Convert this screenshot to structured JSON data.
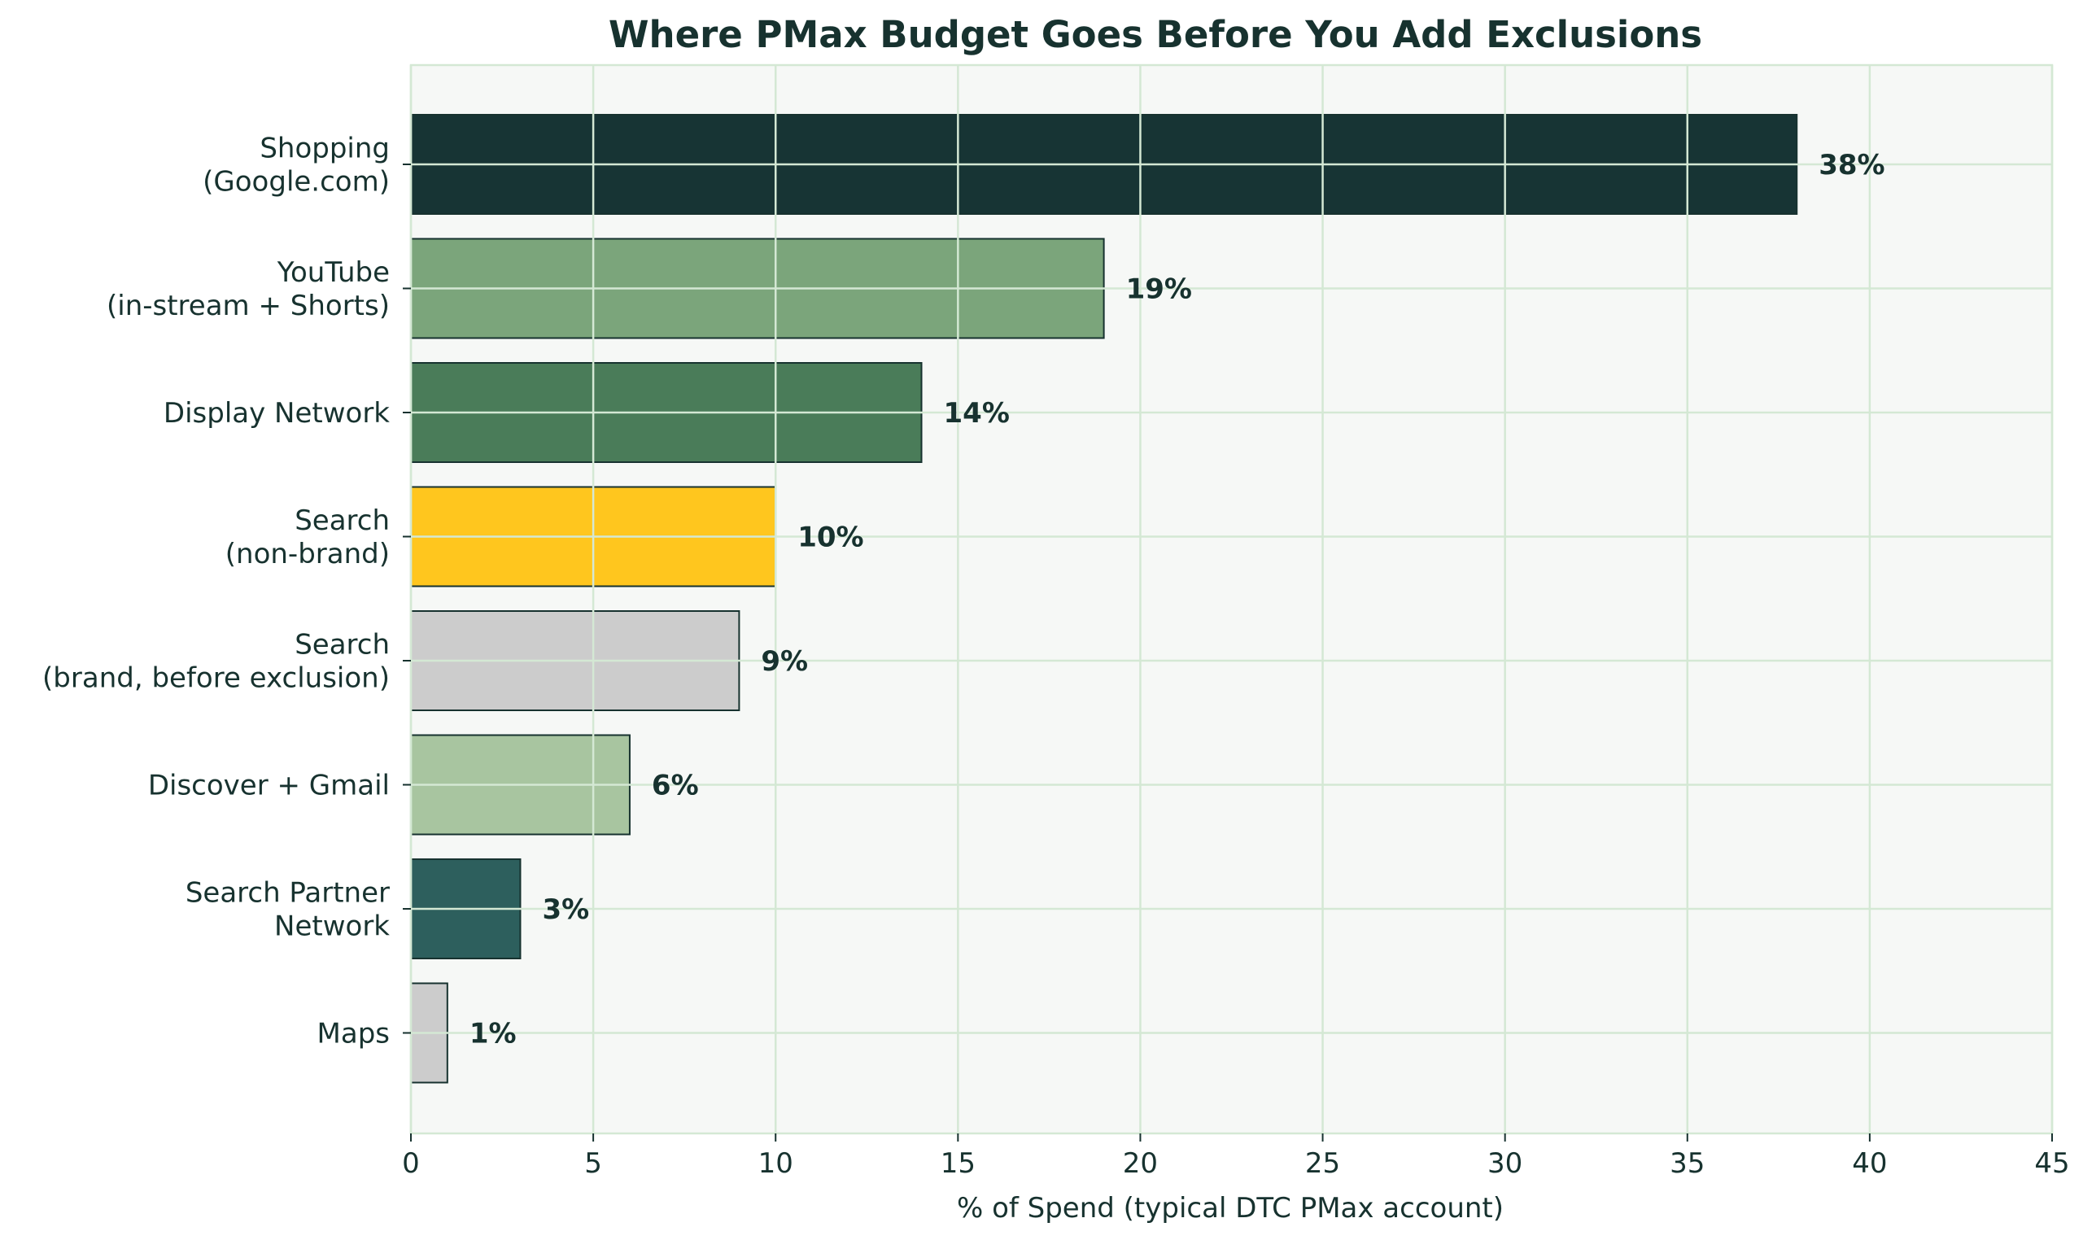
{
  "chart_data": {
    "type": "bar",
    "orientation": "horizontal",
    "title": "Where PMax Budget Goes Before You Add Exclusions",
    "xlabel": "% of Spend (typical DTC PMax account)",
    "ylabel": "",
    "xlim": [
      0,
      45
    ],
    "xticks": [
      0,
      5,
      10,
      15,
      20,
      25,
      30,
      35,
      40,
      45
    ],
    "grid": true,
    "categories": [
      [
        "Shopping",
        "(Google.com)"
      ],
      [
        "YouTube",
        "(in-stream + Shorts)"
      ],
      [
        "Display Network"
      ],
      [
        "Search",
        "(non-brand)"
      ],
      [
        "Search",
        "(brand, before exclusion)"
      ],
      [
        "Discover + Gmail"
      ],
      [
        "Search Partner",
        "Network"
      ],
      [
        "Maps"
      ]
    ],
    "values": [
      38,
      19,
      14,
      10,
      9,
      6,
      3,
      1
    ],
    "value_labels": [
      "38%",
      "19%",
      "14%",
      "10%",
      "9%",
      "6%",
      "3%",
      "1%"
    ],
    "colors": [
      "#173434",
      "#7ba57b",
      "#4a7c59",
      "#ffc61e",
      "#cccccc",
      "#a8c5a0",
      "#2d5f5d",
      "#cccccc"
    ],
    "colors_meta": {
      "background": "#f6f8f6",
      "grid": "#d4e8d4",
      "text": "#17322f",
      "bar_edge": "#17322f"
    }
  }
}
